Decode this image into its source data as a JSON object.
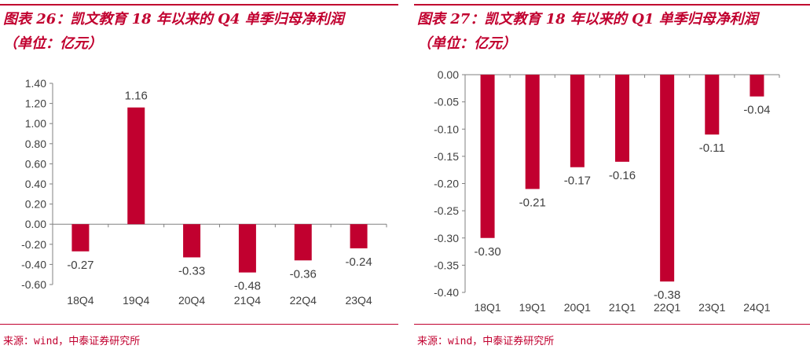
{
  "colors": {
    "accent": "#c1002f",
    "bar": "#c1002f",
    "axis": "#808080",
    "text": "#404040"
  },
  "source": "来源：wind，中泰证券研究所",
  "chart_data": [
    {
      "type": "bar",
      "title": "图表 26：凯文教育 18 年以来的 Q4 单季归母净利润",
      "subtitle": "（单位：亿元）",
      "categories": [
        "18Q4",
        "19Q4",
        "20Q4",
        "21Q4",
        "22Q4",
        "23Q4"
      ],
      "values": [
        -0.27,
        1.16,
        -0.33,
        -0.48,
        -0.36,
        -0.24
      ],
      "value_labels": [
        "-0.27",
        "1.16",
        "-0.33",
        "-0.48",
        "-0.36",
        "-0.24"
      ],
      "ylim": [
        -0.6,
        1.4
      ],
      "yticks": [
        "1.40",
        "1.20",
        "1.00",
        "0.80",
        "0.60",
        "0.40",
        "0.20",
        "0.00",
        "-0.20",
        "-0.40",
        "-0.60"
      ],
      "grid": false,
      "legend": "none"
    },
    {
      "type": "bar",
      "title": "图表 27：凯文教育 18 年以来的 Q1 单季归母净利润",
      "subtitle": "（单位：亿元）",
      "categories": [
        "18Q1",
        "19Q1",
        "20Q1",
        "21Q1",
        "22Q1",
        "23Q1",
        "24Q1"
      ],
      "values": [
        -0.3,
        -0.21,
        -0.17,
        -0.16,
        -0.38,
        -0.11,
        -0.04
      ],
      "value_labels": [
        "-0.30",
        "-0.21",
        "-0.17",
        "-0.16",
        "-0.38",
        "-0.11",
        "-0.04"
      ],
      "ylim": [
        -0.4,
        0.0
      ],
      "yticks": [
        "0.00",
        "-0.05",
        "-0.10",
        "-0.15",
        "-0.20",
        "-0.25",
        "-0.30",
        "-0.35",
        "-0.40"
      ],
      "grid": false,
      "legend": "none"
    }
  ]
}
